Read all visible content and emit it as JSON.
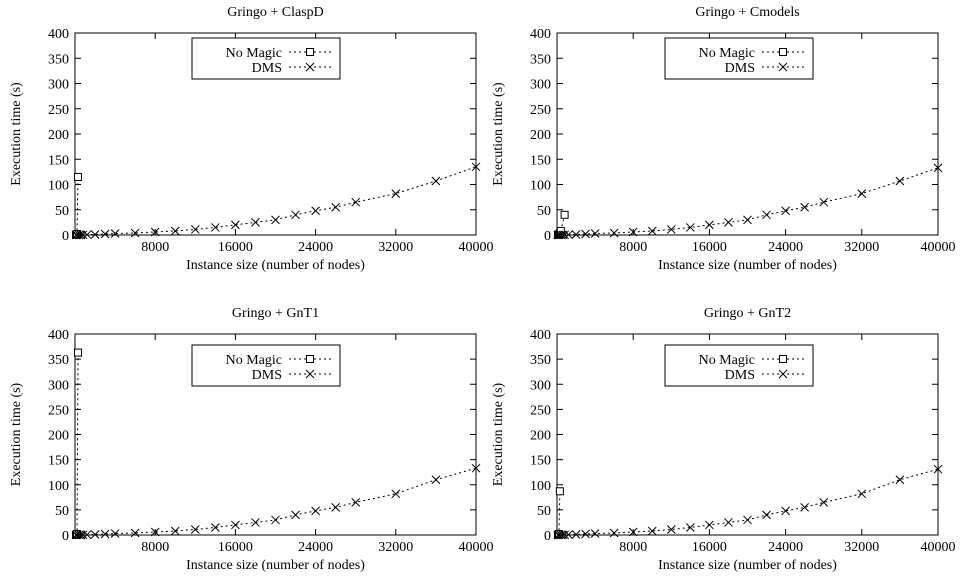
{
  "chart_data": [
    {
      "type": "scatter",
      "title": "Gringo + ClaspD",
      "xlabel": "Instance size (number of nodes)",
      "ylabel": "Execution time (s)",
      "xlim": [
        0,
        40000
      ],
      "ylim": [
        0,
        400
      ],
      "xticks": [
        "8000",
        "16000",
        "24000",
        "32000",
        "40000"
      ],
      "yticks": [
        "0",
        "50",
        "100",
        "150",
        "200",
        "250",
        "300",
        "350",
        "400"
      ],
      "legend_position": "top-center",
      "series": [
        {
          "name": "No Magic",
          "marker": "square",
          "x": [
            100,
            200,
            300
          ],
          "y": [
            0.5,
            2,
            115
          ]
        },
        {
          "name": "DMS",
          "marker": "x",
          "x": [
            100,
            200,
            400,
            600,
            800,
            1200,
            2000,
            3000,
            4000,
            6000,
            8000,
            10000,
            12000,
            14000,
            16000,
            18000,
            20000,
            22000,
            24000,
            26000,
            28000,
            32000,
            36000,
            40000
          ],
          "y": [
            0.1,
            0.1,
            0.2,
            0.3,
            0.4,
            0.6,
            1,
            2,
            3,
            4,
            6,
            8,
            11,
            15,
            20,
            25,
            30,
            40,
            48,
            55,
            65,
            82,
            107,
            135
          ]
        }
      ]
    },
    {
      "type": "scatter",
      "title": "Gringo + Cmodels",
      "xlabel": "Instance size (number of nodes)",
      "ylabel": "Execution time (s)",
      "xlim": [
        0,
        40000
      ],
      "ylim": [
        0,
        400
      ],
      "xticks": [
        "8000",
        "16000",
        "24000",
        "32000",
        "40000"
      ],
      "yticks": [
        "0",
        "50",
        "100",
        "150",
        "200",
        "250",
        "300",
        "350",
        "400"
      ],
      "legend_position": "top-right",
      "series": [
        {
          "name": "No Magic",
          "marker": "square",
          "x": [
            100,
            200,
            300,
            400,
            800
          ],
          "y": [
            0.5,
            1,
            3,
            8,
            40
          ]
        },
        {
          "name": "DMS",
          "marker": "x",
          "x": [
            100,
            200,
            400,
            600,
            800,
            1200,
            2000,
            3000,
            4000,
            6000,
            8000,
            10000,
            12000,
            14000,
            16000,
            18000,
            20000,
            22000,
            24000,
            26000,
            28000,
            32000,
            36000,
            40000
          ],
          "y": [
            0.1,
            0.1,
            0.2,
            0.3,
            0.4,
            0.6,
            1,
            2,
            3,
            4,
            6,
            8,
            11,
            15,
            20,
            25,
            30,
            40,
            48,
            55,
            65,
            82,
            107,
            133
          ]
        }
      ]
    },
    {
      "type": "scatter",
      "title": "Gringo + GnT1",
      "xlabel": "Instance size (number of nodes)",
      "ylabel": "Execution time (s)",
      "xlim": [
        0,
        40000
      ],
      "ylim": [
        0,
        400
      ],
      "xticks": [
        "8000",
        "16000",
        "24000",
        "32000",
        "40000"
      ],
      "yticks": [
        "0",
        "50",
        "100",
        "150",
        "200",
        "250",
        "300",
        "350",
        "400"
      ],
      "legend_position": "top-center",
      "series": [
        {
          "name": "No Magic",
          "marker": "square",
          "x": [
            100,
            200,
            300
          ],
          "y": [
            0.5,
            2,
            363
          ]
        },
        {
          "name": "DMS",
          "marker": "x",
          "x": [
            100,
            200,
            400,
            600,
            800,
            1200,
            2000,
            3000,
            4000,
            6000,
            8000,
            10000,
            12000,
            14000,
            16000,
            18000,
            20000,
            22000,
            24000,
            26000,
            28000,
            32000,
            36000,
            40000
          ],
          "y": [
            0.1,
            0.1,
            0.2,
            0.3,
            0.4,
            0.6,
            1,
            2,
            3,
            4,
            6,
            8,
            11,
            15,
            20,
            25,
            30,
            40,
            48,
            55,
            65,
            82,
            110,
            133
          ]
        }
      ]
    },
    {
      "type": "scatter",
      "title": "Gringo + GnT2",
      "xlabel": "Instance size (number of nodes)",
      "ylabel": "Execution time (s)",
      "xlim": [
        0,
        40000
      ],
      "ylim": [
        0,
        400
      ],
      "xticks": [
        "8000",
        "16000",
        "24000",
        "32000",
        "40000"
      ],
      "yticks": [
        "0",
        "50",
        "100",
        "150",
        "200",
        "250",
        "300",
        "350",
        "400"
      ],
      "legend_position": "top-right",
      "series": [
        {
          "name": "No Magic",
          "marker": "square",
          "x": [
            100,
            200,
            300
          ],
          "y": [
            0.5,
            2,
            87
          ]
        },
        {
          "name": "DMS",
          "marker": "x",
          "x": [
            100,
            200,
            400,
            600,
            800,
            1200,
            2000,
            3000,
            4000,
            6000,
            8000,
            10000,
            12000,
            14000,
            16000,
            18000,
            20000,
            22000,
            24000,
            26000,
            28000,
            32000,
            36000,
            40000
          ],
          "y": [
            0.1,
            0.1,
            0.2,
            0.3,
            0.4,
            0.6,
            1,
            2,
            3,
            4,
            6,
            8,
            11,
            15,
            20,
            25,
            30,
            40,
            48,
            55,
            65,
            82,
            110,
            131
          ]
        }
      ]
    }
  ]
}
